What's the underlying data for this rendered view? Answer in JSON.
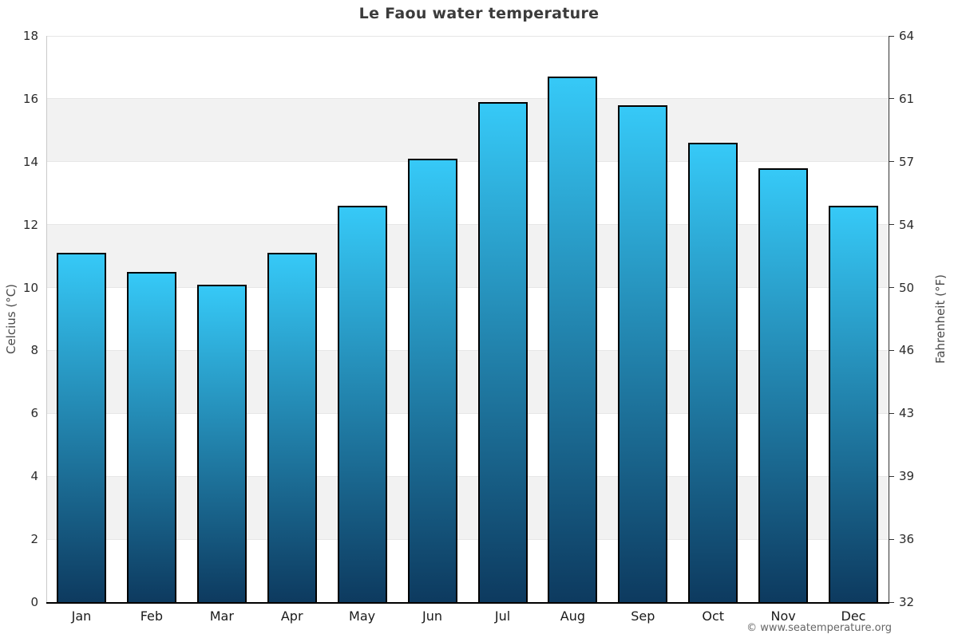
{
  "chart_data": {
    "type": "bar",
    "title": "Le Faou water temperature",
    "categories": [
      "Jan",
      "Feb",
      "Mar",
      "Apr",
      "May",
      "Jun",
      "Jul",
      "Aug",
      "Sep",
      "Oct",
      "Nov",
      "Dec"
    ],
    "values": [
      11.1,
      10.5,
      10.1,
      11.1,
      12.6,
      14.1,
      15.9,
      16.7,
      15.8,
      14.6,
      13.8,
      12.6
    ],
    "xlabel": "",
    "ylabel_left": "Celcius (°C)",
    "ylabel_right": "Fahrenheit (°F)",
    "ylim_c": [
      0,
      18
    ],
    "yticks_c": [
      0,
      2,
      4,
      6,
      8,
      10,
      12,
      14,
      16,
      18
    ],
    "yticks_f": [
      32,
      36,
      39,
      43,
      46,
      50,
      54,
      57,
      61,
      64
    ],
    "grid": "alternating-horizontal-bands",
    "legend": "none",
    "colors": {
      "band_gray": "#f2f2f2",
      "gridline": "#e6e6e6",
      "left_axis_line": "#c9c9c9",
      "right_axis_line": "#333333",
      "bottom_axis_line": "#000000",
      "bar_gradient_top": "#36c9f7",
      "bar_gradient_bottom": "#0d3a5f",
      "bar_border": "#000000",
      "title_text": "#3b3b3b",
      "tick_text": "#2b2b2b",
      "axis_title_text": "#4a4a4a"
    }
  },
  "footer": {
    "credit": "© www.seatemperature.org"
  }
}
